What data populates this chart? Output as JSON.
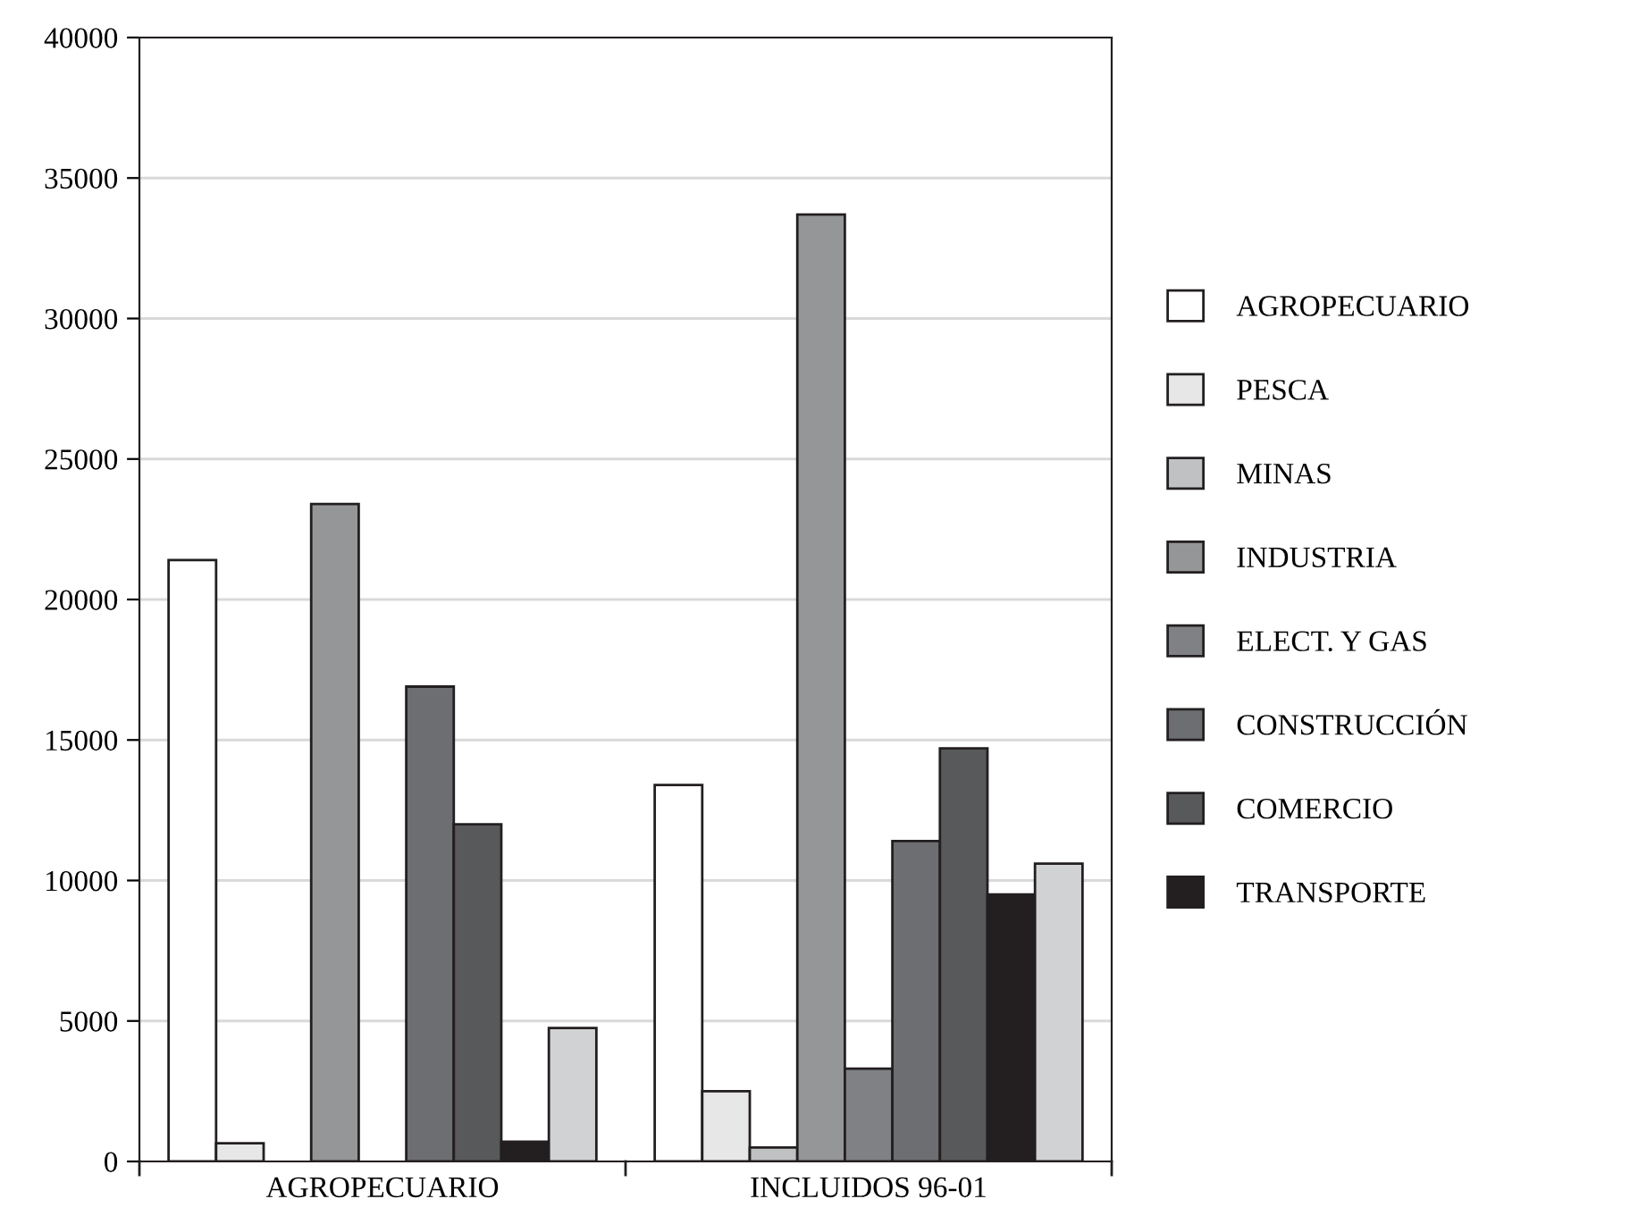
{
  "chart_data": {
    "type": "bar",
    "categories": [
      "AGROPECUARIO",
      "INCLUIDOS 96-01"
    ],
    "series": [
      {
        "name": "AGROPECUARIO",
        "color": "#ffffff",
        "values": [
          21400,
          13400
        ]
      },
      {
        "name": "PESCA",
        "color": "#e6e7e6",
        "values": [
          650,
          2500
        ]
      },
      {
        "name": "MINAS",
        "color": "#c0c1c2",
        "values": [
          null,
          500
        ]
      },
      {
        "name": "INDUSTRIA",
        "color": "#959698",
        "values": [
          23400,
          33700
        ]
      },
      {
        "name": "ELECT. Y GAS",
        "color": "#808185",
        "values": [
          null,
          3300
        ]
      },
      {
        "name": "CONSTRUCCIÓN",
        "color": "#6d6e71",
        "values": [
          16900,
          11400
        ]
      },
      {
        "name": "COMERCIO",
        "color": "#58595b",
        "values": [
          12000,
          14700
        ]
      },
      {
        "name": "TRANSPORTE",
        "color": "#231f20",
        "values": [
          700,
          9500
        ]
      },
      {
        "color": "#d1d2d4",
        "values": [
          4750,
          10600
        ]
      }
    ],
    "ylim": [
      0,
      40000
    ],
    "yticks": [
      0,
      5000,
      10000,
      15000,
      20000,
      25000,
      30000,
      35000,
      40000
    ],
    "grid": "y",
    "legend": "right"
  }
}
